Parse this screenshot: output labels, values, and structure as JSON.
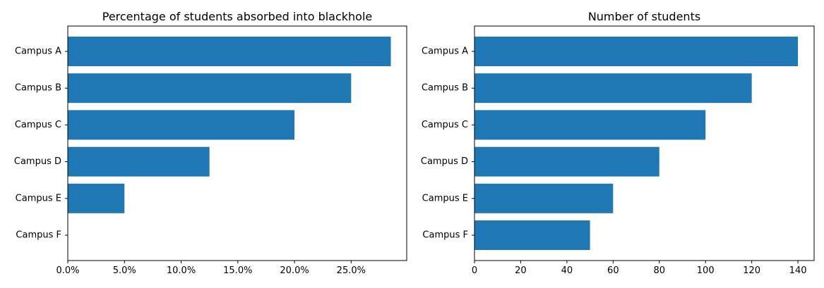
{
  "chart_data": [
    {
      "type": "bar",
      "orientation": "horizontal",
      "title": "Percentage of students absorbed into blackhole",
      "xlabel": "",
      "ylabel": "",
      "categories": [
        "Campus A",
        "Campus B",
        "Campus C",
        "Campus D",
        "Campus E",
        "Campus F"
      ],
      "values": [
        28.5,
        25.0,
        20.0,
        12.5,
        5.0,
        0.0
      ],
      "xlim": [
        0,
        29.9
      ],
      "xticks": [
        0,
        5,
        10,
        15,
        20,
        25
      ],
      "xtick_labels": [
        "0.0%",
        "5.0%",
        "10.0%",
        "15.0%",
        "20.0%",
        "25.0%"
      ],
      "color": "#1f77b4",
      "grid": false,
      "legend": "none"
    },
    {
      "type": "bar",
      "orientation": "horizontal",
      "title": "Number of students",
      "xlabel": "",
      "ylabel": "",
      "categories": [
        "Campus A",
        "Campus B",
        "Campus C",
        "Campus D",
        "Campus E",
        "Campus F"
      ],
      "values": [
        140,
        120,
        100,
        80,
        60,
        50
      ],
      "xlim": [
        0,
        147
      ],
      "xticks": [
        0,
        20,
        40,
        60,
        80,
        100,
        120,
        140
      ],
      "xtick_labels": [
        "0",
        "20",
        "40",
        "60",
        "80",
        "100",
        "120",
        "140"
      ],
      "color": "#1f77b4",
      "grid": false,
      "legend": "none"
    }
  ]
}
